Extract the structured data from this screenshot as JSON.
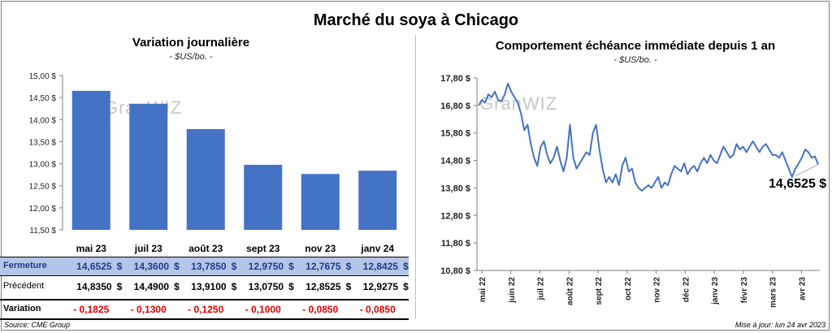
{
  "title": "Marché du soya à Chicago",
  "left": {
    "title": "Variation journalière",
    "unit": "- $US/bo. -",
    "watermark": "GranWIZ",
    "chart_data": {
      "type": "bar",
      "categories": [
        "mai 23",
        "juil 23",
        "août 23",
        "sept 23",
        "nov 23",
        "janv 24"
      ],
      "values": [
        14.6525,
        14.36,
        13.785,
        12.975,
        12.7675,
        12.8425
      ],
      "ylim": [
        11.5,
        15.0
      ],
      "yticks": [
        "15,00 $",
        "14,50 $",
        "14,00 $",
        "13,50 $",
        "13,00 $",
        "12,50 $",
        "12,00 $",
        "11,50 $"
      ],
      "color": "#4472c4",
      "grid": false
    },
    "table": {
      "currency": "$",
      "rows": [
        {
          "label": "Fermeture",
          "values": [
            "14,6525",
            "14,3600",
            "13,7850",
            "12,9750",
            "12,7675",
            "12,8425"
          ]
        },
        {
          "label": "Précédent",
          "values": [
            "14,8350",
            "14,4900",
            "13,9100",
            "13,0750",
            "12,8525",
            "12,9275"
          ]
        },
        {
          "label": "Variation",
          "values": [
            "- 0,1825",
            "- 0,1300",
            "- 0,1250",
            "- 0,1000",
            "- 0,0850",
            "- 0,0850"
          ]
        }
      ]
    }
  },
  "right": {
    "title": "Comportement échéance immédiate depuis 1 an",
    "unit": "- $US/bo. -",
    "watermark": "GranWIZ",
    "last_value_label": "14,6525 $",
    "chart_data": {
      "type": "line",
      "color": "#4472c4",
      "ylim": [
        10.8,
        17.8
      ],
      "yticks": [
        "17,80 $",
        "16,80 $",
        "15,80 $",
        "14,80 $",
        "13,80 $",
        "12,80 $",
        "11,80 $",
        "10,80 $"
      ],
      "xticks": [
        "mai 22",
        "juin 22",
        "juil 22",
        "août 22",
        "sept 22",
        "oct 22",
        "nov 22",
        "déc 22",
        "janv 23",
        "févr 23",
        "mars 23",
        "avr 23"
      ],
      "grid": false,
      "series": [
        {
          "values": [
            16.8,
            17.0,
            16.9,
            17.2,
            17.1,
            17.3,
            17.0,
            16.95,
            17.2,
            17.6,
            17.3,
            17.1,
            16.9,
            16.5,
            15.9,
            16.1,
            15.4,
            14.9,
            14.6,
            15.3,
            15.5,
            15.0,
            14.7,
            14.9,
            15.3,
            14.8,
            14.4,
            14.9,
            16.1,
            14.9,
            14.5,
            14.7,
            14.9,
            15.1,
            15.0,
            15.8,
            16.1,
            15.2,
            14.5,
            14.0,
            14.2,
            14.0,
            14.3,
            13.9,
            14.6,
            14.9,
            14.4,
            14.5,
            14.0,
            13.8,
            13.7,
            13.8,
            13.9,
            13.8,
            14.0,
            14.2,
            13.8,
            14.0,
            13.9,
            14.3,
            14.6,
            14.5,
            14.4,
            14.7,
            14.3,
            14.5,
            14.6,
            14.4,
            14.7,
            14.9,
            14.7,
            15.0,
            14.8,
            14.7,
            15.0,
            15.3,
            15.1,
            14.9,
            15.0,
            15.4,
            15.2,
            15.3,
            15.1,
            15.3,
            15.5,
            15.3,
            15.1,
            15.3,
            15.4,
            15.2,
            15.0,
            15.0,
            14.9,
            15.1,
            14.8,
            14.5,
            14.2,
            14.5,
            14.7,
            14.9,
            15.2,
            15.1,
            14.9,
            14.95,
            14.6525
          ]
        }
      ]
    }
  },
  "footer": {
    "source": "Source: CME Group",
    "updated": "Mise à jour: lun 24 avr 2023"
  }
}
